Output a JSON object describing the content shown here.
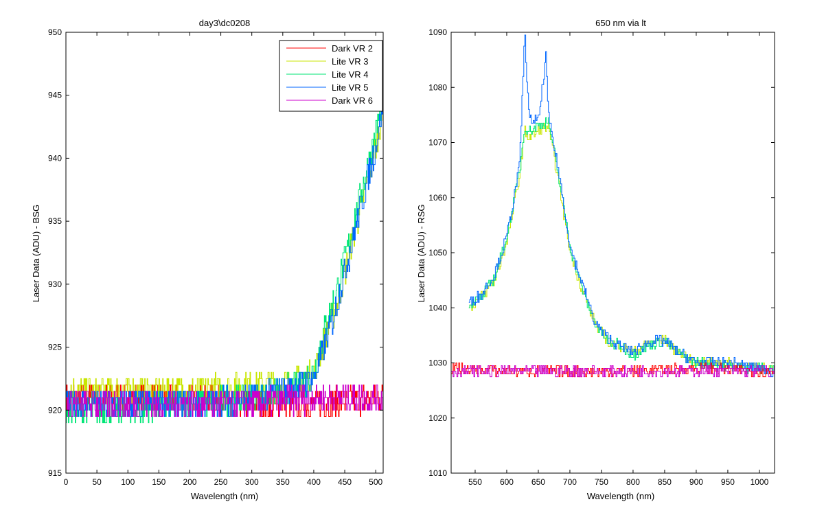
{
  "chart_data": [
    {
      "type": "line",
      "title": "day3\\dc0208",
      "xlabel": "Wavelength (nm)",
      "ylabel": "Laser Data (ADU) - BSG",
      "xlim": [
        0,
        512
      ],
      "ylim": [
        915,
        950
      ],
      "xticks": [
        0,
        50,
        100,
        150,
        200,
        250,
        300,
        350,
        400,
        450,
        500
      ],
      "yticks": [
        915,
        920,
        925,
        930,
        935,
        940,
        945,
        950
      ],
      "legend_position": "top-right",
      "series": [
        {
          "name": "Dark VR 2",
          "color": "#ff0000",
          "x": [
            0,
            100,
            200,
            300,
            400,
            500,
            512
          ],
          "values": [
            921,
            921,
            921,
            920.5,
            920.5,
            921,
            921
          ]
        },
        {
          "name": "Lite VR 3",
          "color": "#c8e600",
          "x": [
            0,
            100,
            200,
            300,
            350,
            380,
            400,
            420,
            440,
            460,
            480,
            500,
            512
          ],
          "values": [
            921.5,
            921.5,
            921.5,
            922,
            922,
            922.5,
            923,
            926,
            929,
            933,
            937,
            941,
            944
          ]
        },
        {
          "name": "Lite VR 4",
          "color": "#00e676",
          "x": [
            0,
            100,
            200,
            300,
            350,
            380,
            400,
            420,
            440,
            460,
            480,
            500,
            512
          ],
          "values": [
            920,
            920,
            920.5,
            921,
            921.5,
            922,
            923,
            927,
            930,
            934,
            938,
            942,
            945
          ]
        },
        {
          "name": "Lite VR 5",
          "color": "#0066ff",
          "x": [
            0,
            100,
            200,
            300,
            350,
            380,
            400,
            420,
            440,
            460,
            480,
            500,
            512
          ],
          "values": [
            920.5,
            920.5,
            920.5,
            921,
            921.5,
            922,
            922.5,
            925.5,
            929,
            933,
            937,
            941,
            944.5
          ]
        },
        {
          "name": "Dark VR 6",
          "color": "#cc00cc",
          "x": [
            0,
            100,
            200,
            300,
            400,
            500,
            512
          ],
          "values": [
            920.5,
            920.5,
            920.5,
            920.5,
            921,
            921,
            921
          ]
        }
      ]
    },
    {
      "type": "line",
      "title": "650 nm via lt",
      "xlabel": "Wavelength (nm)",
      "ylabel": "Laser Data (ADU) - RSG",
      "xlim": [
        512,
        1024
      ],
      "ylim": [
        1010,
        1090
      ],
      "xticks": [
        550,
        600,
        650,
        700,
        750,
        800,
        850,
        900,
        950,
        1000
      ],
      "yticks": [
        1010,
        1020,
        1030,
        1040,
        1050,
        1060,
        1070,
        1080,
        1090
      ],
      "series": [
        {
          "name": "Lite VR 3",
          "color": "#c8e600",
          "x": [
            540,
            560,
            580,
            600,
            620,
            628,
            635,
            650,
            665,
            680,
            700,
            720,
            740,
            760,
            780,
            800,
            830,
            850,
            870,
            900,
            950,
            1000,
            1024
          ],
          "values": [
            1040,
            1042,
            1045,
            1052,
            1064,
            1072,
            1071,
            1072,
            1073,
            1064,
            1050,
            1043,
            1037,
            1034,
            1033,
            1032,
            1034,
            1034,
            1032,
            1030,
            1030,
            1029,
            1029
          ]
        },
        {
          "name": "Lite VR 4",
          "color": "#00e676",
          "x": [
            540,
            560,
            580,
            600,
            620,
            628,
            635,
            650,
            665,
            680,
            700,
            720,
            740,
            760,
            780,
            800,
            830,
            850,
            870,
            900,
            950,
            1000,
            1024
          ],
          "values": [
            1040.5,
            1042,
            1045.5,
            1053,
            1065,
            1073,
            1072,
            1073,
            1074,
            1065,
            1051,
            1043,
            1037,
            1034,
            1033,
            1031.5,
            1033.5,
            1034,
            1032,
            1030,
            1029.5,
            1029,
            1029
          ]
        },
        {
          "name": "Lite VR 5",
          "color": "#0066ff",
          "x": [
            540,
            560,
            580,
            600,
            620,
            628,
            635,
            650,
            662,
            665,
            680,
            700,
            720,
            740,
            760,
            780,
            800,
            830,
            850,
            870,
            900,
            950,
            1000,
            1024
          ],
          "values": [
            1041,
            1042.5,
            1046,
            1053,
            1066,
            1090,
            1074,
            1074,
            1086,
            1075,
            1066,
            1051,
            1044,
            1037,
            1034.5,
            1033,
            1032,
            1034,
            1034,
            1032,
            1030,
            1030,
            1029,
            1028.5
          ]
        },
        {
          "name": "Dark VR 2",
          "color": "#ff0000",
          "x": [
            512,
            600,
            700,
            800,
            900,
            1000,
            1024
          ],
          "values": [
            1029,
            1028.5,
            1028.5,
            1028.5,
            1029,
            1028.5,
            1028.5
          ]
        },
        {
          "name": "Dark VR 6",
          "color": "#cc00cc",
          "x": [
            512,
            600,
            700,
            800,
            900,
            1000,
            1024
          ],
          "values": [
            1028.5,
            1028.5,
            1028.5,
            1028.5,
            1028.5,
            1028.5,
            1028.5
          ]
        }
      ]
    }
  ]
}
